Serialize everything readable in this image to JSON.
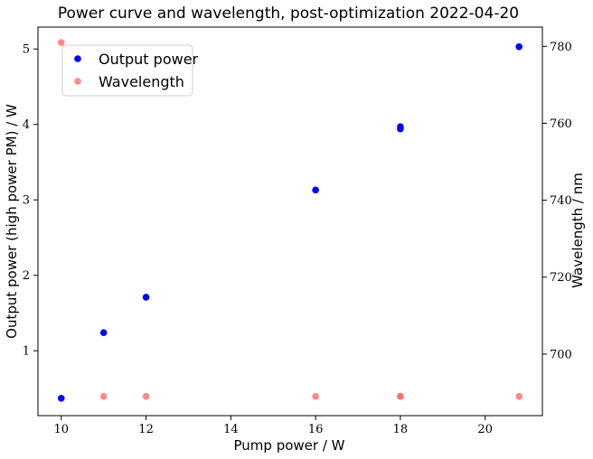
{
  "chart_data": {
    "type": "scatter",
    "title": "Power curve and wavelength, post-optimization 2022-04-20",
    "xlabel": "Pump power / W",
    "ylabel_left": "Output power (high power PM) / W",
    "ylabel_right": "Wavelength / nm",
    "xlim": [
      9.45,
      21.35
    ],
    "ylim_left": [
      0.14,
      5.29
    ],
    "ylim_right": [
      684.0,
      785.0
    ],
    "xticks": [
      10,
      12,
      14,
      16,
      18,
      20
    ],
    "yticks_left": [
      1,
      2,
      3,
      4,
      5
    ],
    "yticks_right": [
      700,
      720,
      740,
      760,
      780
    ],
    "grid": false,
    "legend_position": "upper-left",
    "series": [
      {
        "name": "Output power",
        "axis": "left",
        "color": "#0000ff",
        "x": [
          10,
          11,
          12,
          16,
          18,
          18,
          20.8
        ],
        "y": [
          0.37,
          1.24,
          1.71,
          3.13,
          3.94,
          3.97,
          5.03
        ]
      },
      {
        "name": "Wavelength",
        "axis": "right",
        "color": "#ff6b6b",
        "x": [
          10,
          11,
          12,
          16,
          18,
          18,
          20.8
        ],
        "y": [
          781,
          689,
          689,
          689,
          689,
          689,
          689
        ]
      }
    ]
  }
}
